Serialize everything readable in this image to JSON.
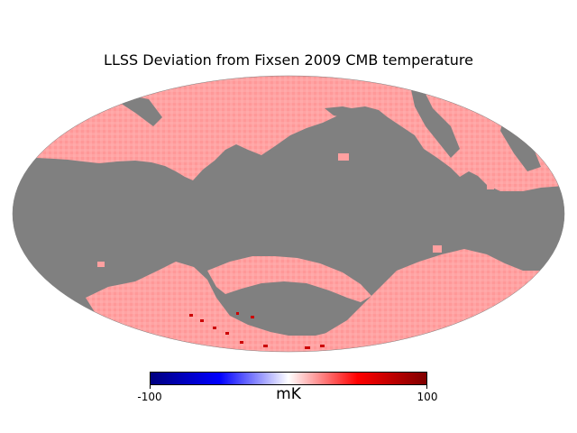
{
  "title": "LLSS Deviation from Fixsen 2009 CMB temperature",
  "projection": "mollweide",
  "colorbar": {
    "min_label": "-100",
    "max_label": "100",
    "unit": "mK",
    "colormap": "seismic",
    "range": [
      -100,
      100
    ]
  },
  "colors": {
    "masked": "#808080",
    "data_fill": "#ffa0a0",
    "data_fill_dark": "#ff8c8c",
    "hot_pixels": "#cc0000"
  }
}
